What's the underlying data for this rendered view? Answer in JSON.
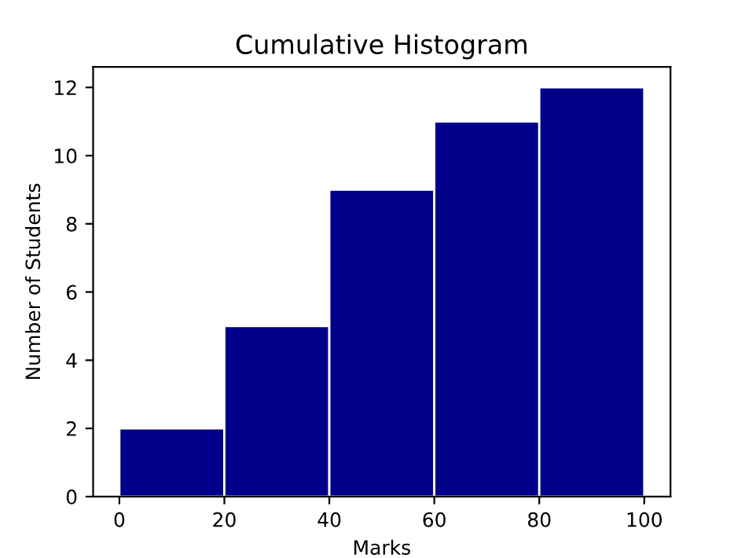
{
  "chart_data": {
    "type": "histogram",
    "title": "Cumulative Histogram",
    "xlabel": "Marks",
    "ylabel": "Number of Students",
    "bins": [
      0,
      20,
      40,
      60,
      80,
      100
    ],
    "values": [
      2,
      5,
      9,
      11,
      12
    ],
    "color": "#00008b",
    "xlim": [
      -5,
      105
    ],
    "ylim": [
      0,
      12.6
    ],
    "xticks": [
      0,
      20,
      40,
      60,
      80,
      100
    ],
    "yticks": [
      0,
      2,
      4,
      6,
      8,
      10,
      12
    ],
    "grid": false,
    "legend": false
  }
}
